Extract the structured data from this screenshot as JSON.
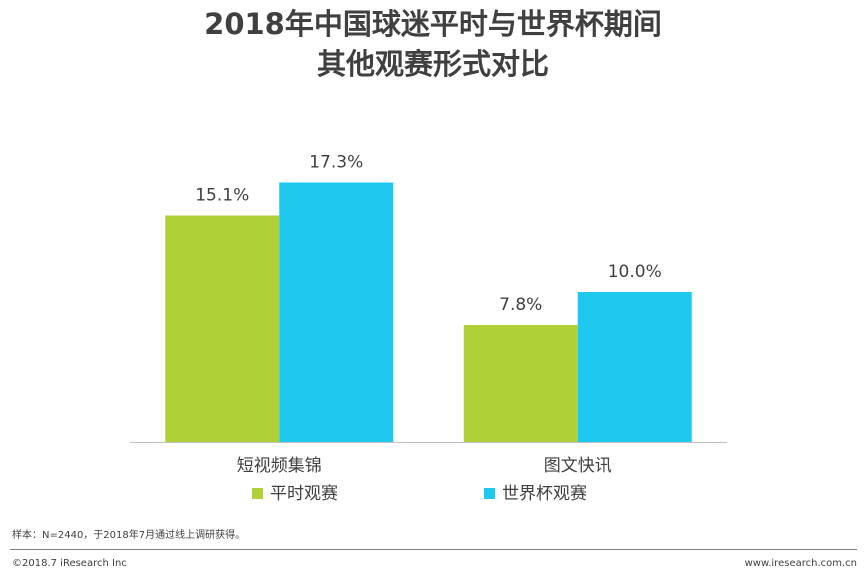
{
  "chart_data": {
    "type": "bar",
    "title": [
      "2018年中国球迷平时与世界杯期间",
      "其他观赛形式对比"
    ],
    "categories": [
      "短视频集锦",
      "图文快讯"
    ],
    "series": [
      {
        "name": "平时观赛",
        "color": "#b0d136",
        "values": [
          15.1,
          7.8
        ],
        "value_labels": [
          "15.1%",
          "7.8%"
        ]
      },
      {
        "name": "世界杯观赛",
        "color": "#1ec8ef",
        "values": [
          17.3,
          10.0
        ],
        "value_labels": [
          "17.3%",
          "10.0%"
        ]
      }
    ],
    "ylim": [
      0,
      20
    ],
    "footnote": "样本：N=2440，于2018年7月通过线上调研获得。",
    "copyright": "©2018.7 iResearch Inc",
    "website": "www.iresearch.com.cn"
  }
}
